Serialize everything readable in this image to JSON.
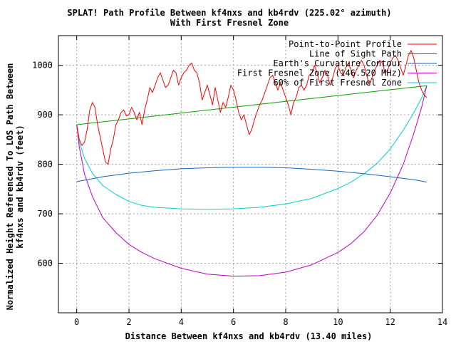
{
  "chart_data": {
    "type": "line",
    "title": "SPLAT! Path Profile Between kf4nxs and kb4rdv (225.02° azimuth)",
    "subtitle": "With First Fresnel Zone",
    "xlabel": "Distance Between kf4nxs and kb4rdv (13.40 miles)",
    "ylabel_line1": "Normalized Height Referenced To LOS Path Between",
    "ylabel_line2": "kf4nxs and kb4rdv (feet)",
    "xlim": [
      -0.7,
      14
    ],
    "ylim": [
      500,
      1060
    ],
    "x_ticks": [
      0,
      2,
      4,
      6,
      8,
      10,
      12,
      14
    ],
    "y_ticks": [
      600,
      700,
      800,
      900,
      1000
    ],
    "grid": true,
    "legend_position": "top-right",
    "series": [
      {
        "name": "Point-to-Point Profile",
        "color": "#ff0000",
        "x": [
          0,
          0.1,
          0.2,
          0.3,
          0.4,
          0.5,
          0.6,
          0.7,
          0.8,
          0.9,
          1.0,
          1.1,
          1.2,
          1.3,
          1.4,
          1.5,
          1.6,
          1.7,
          1.8,
          1.9,
          2.0,
          2.1,
          2.2,
          2.3,
          2.4,
          2.5,
          2.6,
          2.7,
          2.8,
          2.9,
          3.0,
          3.1,
          3.2,
          3.3,
          3.4,
          3.5,
          3.6,
          3.7,
          3.8,
          3.9,
          4.0,
          4.1,
          4.2,
          4.3,
          4.4,
          4.5,
          4.6,
          4.7,
          4.8,
          4.9,
          5.0,
          5.1,
          5.2,
          5.3,
          5.4,
          5.5,
          5.6,
          5.7,
          5.8,
          5.9,
          6.0,
          6.1,
          6.2,
          6.3,
          6.4,
          6.5,
          6.6,
          6.7,
          6.8,
          6.9,
          7.0,
          7.1,
          7.2,
          7.3,
          7.4,
          7.5,
          7.6,
          7.7,
          7.8,
          7.9,
          8.0,
          8.1,
          8.2,
          8.3,
          8.4,
          8.5,
          8.6,
          8.7,
          8.8,
          8.9,
          9.0,
          9.1,
          9.2,
          9.3,
          9.4,
          9.5,
          9.6,
          9.7,
          9.8,
          9.9,
          10.0,
          10.1,
          10.2,
          10.3,
          10.4,
          10.5,
          10.6,
          10.7,
          10.8,
          10.9,
          11.0,
          11.1,
          11.2,
          11.3,
          11.4,
          11.5,
          11.6,
          11.7,
          11.8,
          11.9,
          12.0,
          12.1,
          12.2,
          12.3,
          12.4,
          12.5,
          12.6,
          12.7,
          12.8,
          12.9,
          13.0,
          13.1,
          13.2,
          13.3,
          13.4
        ],
        "values": [
          880,
          850,
          838,
          845,
          870,
          910,
          925,
          915,
          880,
          855,
          830,
          805,
          800,
          830,
          850,
          880,
          890,
          905,
          910,
          898,
          900,
          915,
          905,
          890,
          905,
          880,
          910,
          930,
          955,
          945,
          960,
          975,
          985,
          970,
          955,
          960,
          975,
          990,
          985,
          960,
          975,
          985,
          990,
          1000,
          1005,
          990,
          985,
          965,
          930,
          945,
          960,
          940,
          920,
          955,
          930,
          905,
          925,
          915,
          935,
          960,
          950,
          930,
          905,
          890,
          900,
          880,
          860,
          870,
          890,
          905,
          920,
          930,
          945,
          960,
          975,
          980,
          965,
          950,
          965,
          950,
          935,
          920,
          900,
          925,
          935,
          955,
          960,
          950,
          960,
          980,
          985,
          1000,
          985,
          965,
          975,
          990,
          980,
          960,
          975,
          995,
          1000,
          985,
          980,
          995,
          1005,
          990,
          975,
          990,
          1000,
          1010,
          1000,
          980,
          960,
          975,
          990,
          1000,
          1010,
          1005,
          985,
          990,
          1005,
          1015,
          1020,
          1010,
          995,
          980,
          1000,
          1020,
          1030,
          1015,
          990,
          965,
          950,
          940,
          935
        ]
      },
      {
        "name": "Line of Sight Path",
        "color": "#00a000",
        "x": [
          0,
          13.4
        ],
        "values": [
          880,
          959
        ]
      },
      {
        "name": "Earth's Curvature Contour",
        "color": "#1565c0",
        "x": [
          0,
          1,
          2,
          3,
          4,
          5,
          6,
          7,
          8,
          9,
          10,
          11,
          12,
          13,
          13.4
        ],
        "values": [
          765,
          775,
          782,
          787,
          791,
          793,
          794,
          794,
          793,
          790,
          786,
          781,
          775,
          768,
          764
        ]
      },
      {
        "name": "First Fresnel Zone (146.520 MHz)",
        "color": "#c000c0",
        "x": [
          0,
          0.1,
          0.3,
          0.6,
          1,
          1.5,
          2,
          2.5,
          3,
          4,
          5,
          6,
          7,
          8,
          9,
          10,
          10.5,
          11,
          11.5,
          12,
          12.5,
          12.9,
          13.2,
          13.4
        ],
        "values": [
          880,
          835,
          780,
          735,
          692,
          662,
          638,
          622,
          609,
          590,
          578,
          574,
          575,
          582,
          597,
          622,
          640,
          664,
          697,
          742,
          800,
          862,
          915,
          959
        ]
      },
      {
        "name": "60% of First Fresnel Zone",
        "color": "#00d0d0",
        "x": [
          0,
          0.1,
          0.3,
          0.6,
          1,
          1.5,
          2,
          2.5,
          3,
          4,
          5,
          6,
          7,
          8,
          9,
          10,
          10.5,
          11,
          11.5,
          12,
          12.5,
          12.9,
          13.2,
          13.4
        ],
        "values": [
          880,
          845,
          812,
          782,
          757,
          739,
          725,
          717,
          713,
          710,
          709,
          710,
          713,
          720,
          731,
          751,
          764,
          781,
          802,
          831,
          869,
          904,
          934,
          959
        ]
      }
    ]
  }
}
